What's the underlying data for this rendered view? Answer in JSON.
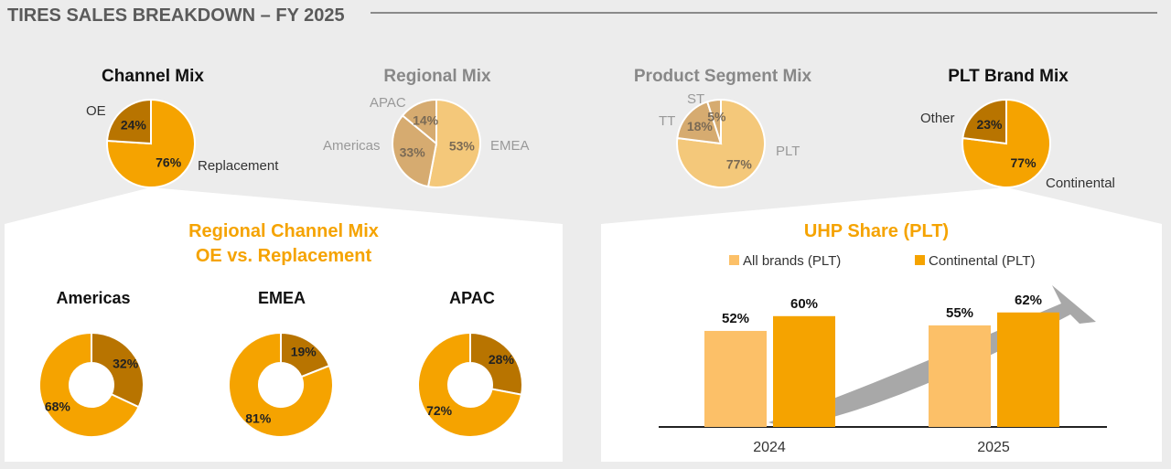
{
  "header": {
    "title": "TIRES SALES BREAKDOWN – FY 2025"
  },
  "colors": {
    "orange": "#f5a300",
    "dark": "#b87400",
    "light": "#fcc068",
    "tan": "#d6ab70",
    "sand": "#f4c87a",
    "arrow": "#a8a8a8"
  },
  "chart_data": [
    {
      "type": "pie",
      "title": "Channel Mix",
      "labels": [
        "Replacement",
        "OE"
      ],
      "values": [
        76,
        24
      ],
      "colors": [
        "#f5a300",
        "#b87400"
      ]
    },
    {
      "type": "pie",
      "title": "Regional Mix",
      "labels": [
        "EMEA",
        "Americas",
        "APAC"
      ],
      "values": [
        53,
        33,
        14
      ],
      "colors": [
        "#f4c87a",
        "#d6ab70",
        "#d6ab70"
      ]
    },
    {
      "type": "pie",
      "title": "Product Segment Mix",
      "labels": [
        "PLT",
        "TT",
        "ST"
      ],
      "values": [
        77,
        18,
        5
      ],
      "colors": [
        "#f4c87a",
        "#d6ab70",
        "#d6ab70"
      ]
    },
    {
      "type": "pie",
      "title": "PLT Brand Mix",
      "labels": [
        "Continental",
        "Other"
      ],
      "values": [
        77,
        23
      ],
      "colors": [
        "#f5a300",
        "#b87400"
      ]
    },
    {
      "type": "donut",
      "title": "Regional Channel Mix OE vs. Replacement",
      "groups": [
        {
          "title": "Americas",
          "values": [
            32,
            68
          ]
        },
        {
          "title": "EMEA",
          "values": [
            19,
            81
          ]
        },
        {
          "title": "APAC",
          "values": [
            28,
            72
          ]
        }
      ],
      "colors": [
        "#b87400",
        "#f5a300"
      ]
    },
    {
      "type": "bar",
      "title": "UHP Share (PLT)",
      "categories": [
        "2024",
        "2025"
      ],
      "series": [
        {
          "name": "All brands (PLT)",
          "values": [
            52,
            55
          ],
          "color": "#fcc068"
        },
        {
          "name": "Continental (PLT)",
          "values": [
            60,
            62
          ],
          "color": "#f5a300"
        }
      ],
      "unit": "%"
    }
  ],
  "panels": {
    "regional_title_1": "Regional Channel Mix",
    "regional_title_2": "OE vs. Replacement"
  }
}
